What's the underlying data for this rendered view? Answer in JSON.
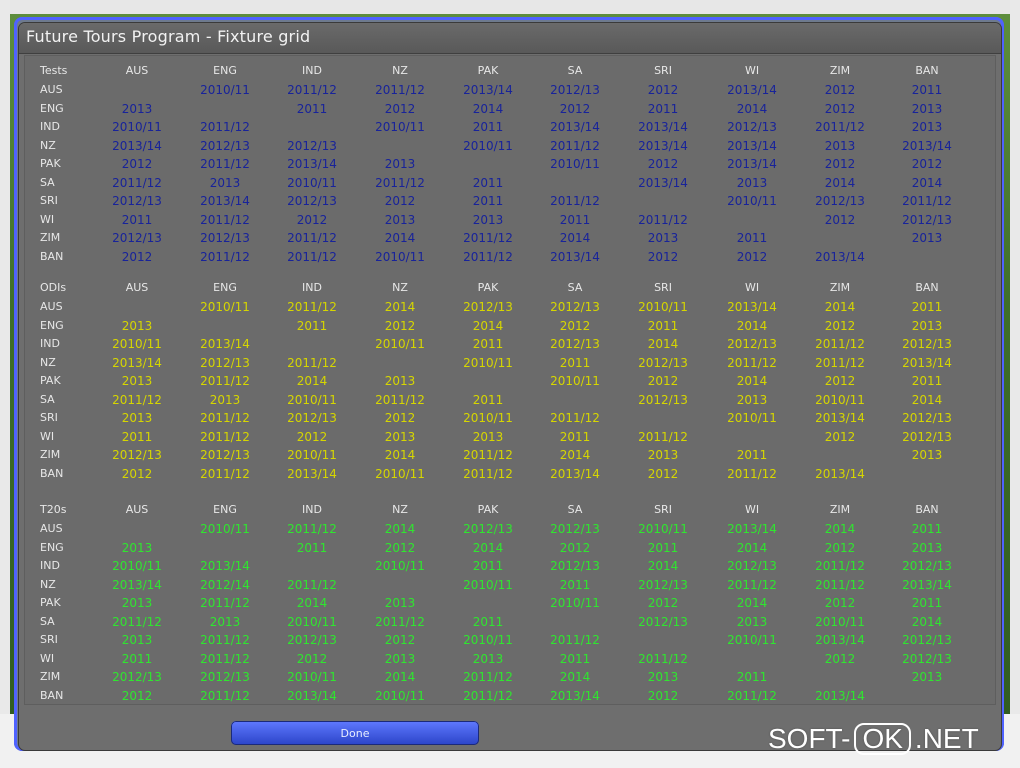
{
  "dialog": {
    "title": "Future Tours Program - Fixture grid",
    "done_label": "Done"
  },
  "columns": [
    "AUS",
    "ENG",
    "IND",
    "NZ",
    "PAK",
    "SA",
    "SRI",
    "WI",
    "ZIM",
    "BAN"
  ],
  "rows": [
    "AUS",
    "ENG",
    "IND",
    "NZ",
    "PAK",
    "SA",
    "SRI",
    "WI",
    "ZIM",
    "BAN"
  ],
  "sections": [
    {
      "label": "Tests",
      "key": "tests",
      "rows": [
        [
          "",
          "2010/11",
          "2011/12",
          "2011/12",
          "2013/14",
          "2012/13",
          "2012",
          "2013/14",
          "2012",
          "2011"
        ],
        [
          "2013",
          "",
          "2011",
          "2012",
          "2014",
          "2012",
          "2011",
          "2014",
          "2012",
          "2013"
        ],
        [
          "2010/11",
          "2011/12",
          "",
          "2010/11",
          "2011",
          "2013/14",
          "2013/14",
          "2012/13",
          "2011/12",
          "2013"
        ],
        [
          "2013/14",
          "2012/13",
          "2012/13",
          "",
          "2010/11",
          "2011/12",
          "2013/14",
          "2013/14",
          "2013",
          "2013/14"
        ],
        [
          "2012",
          "2011/12",
          "2013/14",
          "2013",
          "",
          "2010/11",
          "2012",
          "2013/14",
          "2012",
          "2012"
        ],
        [
          "2011/12",
          "2013",
          "2010/11",
          "2011/12",
          "2011",
          "",
          "2013/14",
          "2013",
          "2014",
          "2014"
        ],
        [
          "2012/13",
          "2013/14",
          "2012/13",
          "2012",
          "2011",
          "2011/12",
          "",
          "2010/11",
          "2012/13",
          "2011/12"
        ],
        [
          "2011",
          "2011/12",
          "2012",
          "2013",
          "2013",
          "2011",
          "2011/12",
          "",
          "2012",
          "2012/13"
        ],
        [
          "2012/13",
          "2012/13",
          "2011/12",
          "2014",
          "2011/12",
          "2014",
          "2013",
          "2011",
          "",
          "2013"
        ],
        [
          "2012",
          "2011/12",
          "2011/12",
          "2010/11",
          "2011/12",
          "2013/14",
          "2012",
          "2012",
          "2013/14",
          ""
        ]
      ]
    },
    {
      "label": "ODIs",
      "key": "odis",
      "rows": [
        [
          "",
          "2010/11",
          "2011/12",
          "2014",
          "2012/13",
          "2012/13",
          "2010/11",
          "2013/14",
          "2014",
          "2011"
        ],
        [
          "2013",
          "",
          "2011",
          "2012",
          "2014",
          "2012",
          "2011",
          "2014",
          "2012",
          "2013"
        ],
        [
          "2010/11",
          "2013/14",
          "",
          "2010/11",
          "2011",
          "2012/13",
          "2014",
          "2012/13",
          "2011/12",
          "2012/13"
        ],
        [
          "2013/14",
          "2012/13",
          "2011/12",
          "",
          "2010/11",
          "2011",
          "2012/13",
          "2011/12",
          "2011/12",
          "2013/14"
        ],
        [
          "2013",
          "2011/12",
          "2014",
          "2013",
          "",
          "2010/11",
          "2012",
          "2014",
          "2012",
          "2011"
        ],
        [
          "2011/12",
          "2013",
          "2010/11",
          "2011/12",
          "2011",
          "",
          "2012/13",
          "2013",
          "2010/11",
          "2014"
        ],
        [
          "2013",
          "2011/12",
          "2012/13",
          "2012",
          "2010/11",
          "2011/12",
          "",
          "2010/11",
          "2013/14",
          "2012/13"
        ],
        [
          "2011",
          "2011/12",
          "2012",
          "2013",
          "2013",
          "2011",
          "2011/12",
          "",
          "2012",
          "2012/13"
        ],
        [
          "2012/13",
          "2012/13",
          "2010/11",
          "2014",
          "2011/12",
          "2014",
          "2013",
          "2011",
          "",
          "2013"
        ],
        [
          "2012",
          "2011/12",
          "2013/14",
          "2010/11",
          "2011/12",
          "2013/14",
          "2012",
          "2011/12",
          "2013/14",
          ""
        ]
      ]
    },
    {
      "label": "T20s",
      "key": "t20s",
      "rows": [
        [
          "",
          "2010/11",
          "2011/12",
          "2014",
          "2012/13",
          "2012/13",
          "2010/11",
          "2013/14",
          "2014",
          "2011"
        ],
        [
          "2013",
          "",
          "2011",
          "2012",
          "2014",
          "2012",
          "2011",
          "2014",
          "2012",
          "2013"
        ],
        [
          "2010/11",
          "2013/14",
          "",
          "2010/11",
          "2011",
          "2012/13",
          "2014",
          "2012/13",
          "2011/12",
          "2012/13"
        ],
        [
          "2013/14",
          "2012/14",
          "2011/12",
          "",
          "2010/11",
          "2011",
          "2012/13",
          "2011/12",
          "2011/12",
          "2013/14"
        ],
        [
          "2013",
          "2011/12",
          "2014",
          "2013",
          "",
          "2010/11",
          "2012",
          "2014",
          "2012",
          "2011"
        ],
        [
          "2011/12",
          "2013",
          "2010/11",
          "2011/12",
          "2011",
          "",
          "2012/13",
          "2013",
          "2010/11",
          "2014"
        ],
        [
          "2013",
          "2011/12",
          "2012/13",
          "2012",
          "2010/11",
          "2011/12",
          "",
          "2010/11",
          "2013/14",
          "2012/13"
        ],
        [
          "2011",
          "2011/12",
          "2012",
          "2013",
          "2013",
          "2011",
          "2011/12",
          "",
          "2012",
          "2012/13"
        ],
        [
          "2012/13",
          "2012/13",
          "2010/11",
          "2014",
          "2011/12",
          "2014",
          "2013",
          "2011",
          "",
          "2013"
        ],
        [
          "2012",
          "2011/12",
          "2013/14",
          "2010/11",
          "2011/12",
          "2013/14",
          "2012",
          "2011/12",
          "2013/14",
          ""
        ]
      ]
    }
  ],
  "watermark": {
    "left": "SOFT-",
    "box": "OK",
    "right": ".NET"
  }
}
